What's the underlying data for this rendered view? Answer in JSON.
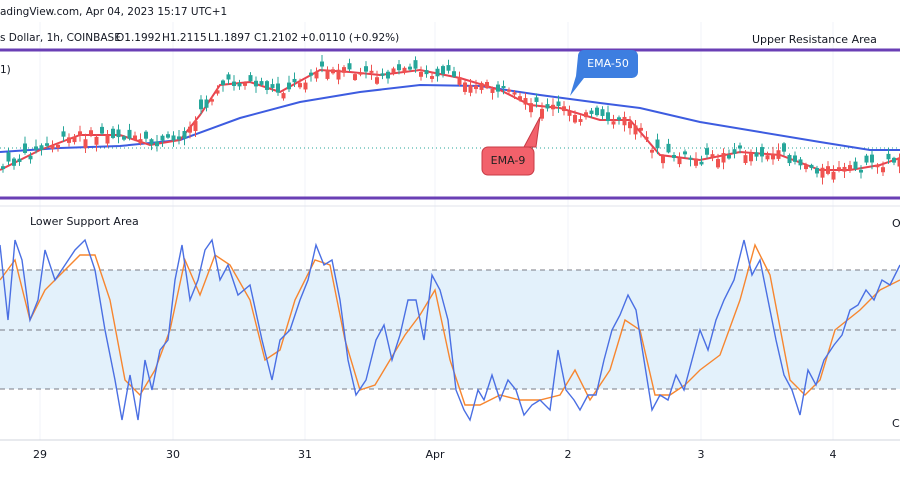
{
  "header": {
    "source": "adingView.com, Apr 04, 2023 15:17 UTC+1",
    "symbol": "s Dollar, 1h, COINBASE",
    "open": "O1.1992",
    "high": "H1.2115",
    "low": "L1.1897",
    "close": "C1.2102",
    "change": "+0.0110 (+0.92%)",
    "indicator": "1)"
  },
  "annotations": {
    "upper": "Upper Resistance Area",
    "ema50": "EMA-50",
    "ema9": "EMA-9",
    "lower": "Lower Support Area",
    "right_top": "O",
    "right_bottom": "C"
  },
  "x_axis": {
    "labels": [
      "29",
      "30",
      "31",
      "Apr",
      "2",
      "3",
      "4"
    ]
  }
}
